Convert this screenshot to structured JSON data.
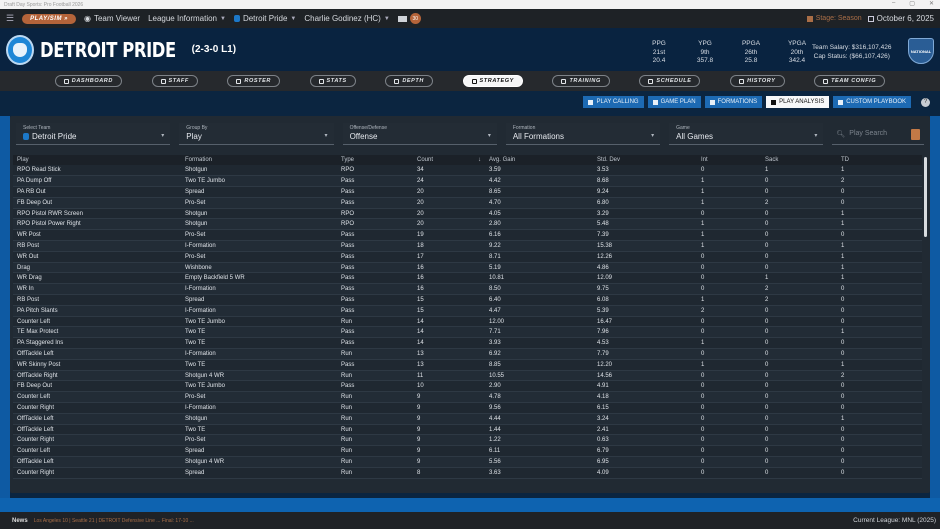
{
  "window": {
    "title": "Draft Day Sports: Pro Football 2026",
    "controls": [
      "–",
      "▢",
      "✕"
    ]
  },
  "topnav": {
    "play_sim": "PLAY/SIM »",
    "team_viewer": "Team Viewer",
    "league_info": "League Information",
    "team": "Detroit Pride",
    "coach": "Charlie Godinez (HC)",
    "mail_count": "30",
    "stage": "Stage: Season",
    "date": "October 6, 2025"
  },
  "header": {
    "team_name": "DETROIT PRIDE",
    "record": "(2-3-0 L1)",
    "stats": [
      {
        "label": "PPG",
        "rank": "21st",
        "value": "20.4"
      },
      {
        "label": "YPG",
        "rank": "9th",
        "value": "357.8"
      },
      {
        "label": "PPGA",
        "rank": "26th",
        "value": "25.8"
      },
      {
        "label": "YPGA",
        "rank": "20th",
        "value": "342.4"
      }
    ],
    "team_salary": "Team Salary: $316,107,426",
    "cap_status": "Cap Status: ($66,107,426)",
    "conference_badge": "NATIONAL"
  },
  "tabs": [
    {
      "label": "DASHBOARD"
    },
    {
      "label": "STAFF"
    },
    {
      "label": "ROSTER"
    },
    {
      "label": "STATS"
    },
    {
      "label": "DEPTH"
    },
    {
      "label": "STRATEGY"
    },
    {
      "label": "TRAINING"
    },
    {
      "label": "SCHEDULE"
    },
    {
      "label": "HISTORY"
    },
    {
      "label": "TEAM CONFIG"
    }
  ],
  "subnav": [
    {
      "label": "PLAY CALLING"
    },
    {
      "label": "GAME PLAN"
    },
    {
      "label": "FORMATIONS"
    },
    {
      "label": "PLAY ANALYSIS"
    },
    {
      "label": "CUSTOM PLAYBOOK"
    }
  ],
  "filters": {
    "team": {
      "label": "Select Team",
      "value": "Detroit Pride"
    },
    "group_by": {
      "label": "Group By",
      "value": "Play"
    },
    "side": {
      "label": "Offense/Defense",
      "value": "Offense"
    },
    "formation": {
      "label": "Formation",
      "value": "All Formations"
    },
    "game": {
      "label": "Game",
      "value": "All Games"
    },
    "search_placeholder": "Play Search"
  },
  "table": {
    "columns": [
      "Play",
      "Formation",
      "Type",
      "Count",
      "Avg. Gain",
      "Std. Dev",
      "Int",
      "Sack",
      "TD"
    ],
    "sort_indicator": "↓",
    "rows": [
      [
        "RPO Read Stick",
        "Shotgun",
        "RPO",
        "34",
        "3.59",
        "3.53",
        "0",
        "1",
        "1"
      ],
      [
        "PA Dump Off",
        "Two TE Jumbo",
        "Pass",
        "24",
        "4.42",
        "8.68",
        "1",
        "0",
        "2"
      ],
      [
        "PA RB Out",
        "Spread",
        "Pass",
        "20",
        "8.65",
        "9.24",
        "1",
        "0",
        "0"
      ],
      [
        "FB Deep Out",
        "Pro-Set",
        "Pass",
        "20",
        "4.70",
        "6.80",
        "1",
        "2",
        "0"
      ],
      [
        "RPO Pistol RWR Screen",
        "Shotgun",
        "RPO",
        "20",
        "4.05",
        "3.29",
        "0",
        "0",
        "1"
      ],
      [
        "RPO Pistol Power Right",
        "Shotgun",
        "RPO",
        "20",
        "2.80",
        "5.48",
        "1",
        "0",
        "1"
      ],
      [
        "WR Post",
        "Pro-Set",
        "Pass",
        "19",
        "6.16",
        "7.39",
        "1",
        "0",
        "0"
      ],
      [
        "RB Post",
        "I-Formation",
        "Pass",
        "18",
        "9.22",
        "15.38",
        "1",
        "0",
        "1"
      ],
      [
        "WR Out",
        "Pro-Set",
        "Pass",
        "17",
        "8.71",
        "12.26",
        "0",
        "0",
        "1"
      ],
      [
        "Drag",
        "Wishbone",
        "Pass",
        "16",
        "5.19",
        "4.86",
        "0",
        "0",
        "1"
      ],
      [
        "WR Drag",
        "Empty Backfield 5 WR",
        "Pass",
        "16",
        "10.81",
        "12.09",
        "0",
        "1",
        "1"
      ],
      [
        "WR In",
        "I-Formation",
        "Pass",
        "16",
        "8.50",
        "9.75",
        "0",
        "2",
        "0"
      ],
      [
        "RB Post",
        "Spread",
        "Pass",
        "15",
        "6.40",
        "6.08",
        "1",
        "2",
        "0"
      ],
      [
        "PA Pitch Slants",
        "I-Formation",
        "Pass",
        "15",
        "4.47",
        "5.39",
        "2",
        "0",
        "0"
      ],
      [
        "Counter Left",
        "Two TE Jumbo",
        "Run",
        "14",
        "12.00",
        "16.47",
        "0",
        "0",
        "0"
      ],
      [
        "TE Max Protect",
        "Two TE",
        "Pass",
        "14",
        "7.71",
        "7.96",
        "0",
        "0",
        "1"
      ],
      [
        "PA Staggered Ins",
        "Two TE",
        "Pass",
        "14",
        "3.93",
        "4.53",
        "1",
        "0",
        "0"
      ],
      [
        "OffTackle Left",
        "I-Formation",
        "Run",
        "13",
        "6.92",
        "7.79",
        "0",
        "0",
        "0"
      ],
      [
        "WR Skinny Post",
        "Two TE",
        "Pass",
        "13",
        "8.85",
        "12.20",
        "1",
        "0",
        "1"
      ],
      [
        "OffTackle Right",
        "Shotgun 4 WR",
        "Run",
        "11",
        "10.55",
        "14.56",
        "0",
        "0",
        "2"
      ],
      [
        "FB Deep Out",
        "Two TE Jumbo",
        "Pass",
        "10",
        "2.90",
        "4.91",
        "0",
        "0",
        "0"
      ],
      [
        "Counter Left",
        "Pro-Set",
        "Run",
        "9",
        "4.78",
        "4.18",
        "0",
        "0",
        "0"
      ],
      [
        "Counter Right",
        "I-Formation",
        "Run",
        "9",
        "9.56",
        "6.15",
        "0",
        "0",
        "0"
      ],
      [
        "OffTackle Left",
        "Shotgun",
        "Run",
        "9",
        "4.44",
        "3.24",
        "0",
        "0",
        "1"
      ],
      [
        "OffTackle Left",
        "Two TE",
        "Run",
        "9",
        "1.44",
        "2.41",
        "0",
        "0",
        "0"
      ],
      [
        "Counter Right",
        "Pro-Set",
        "Run",
        "9",
        "1.22",
        "0.63",
        "0",
        "0",
        "0"
      ],
      [
        "Counter Left",
        "Spread",
        "Run",
        "9",
        "6.11",
        "6.79",
        "0",
        "0",
        "0"
      ],
      [
        "OffTackle Left",
        "Shotgun 4 WR",
        "Run",
        "9",
        "5.56",
        "6.95",
        "0",
        "0",
        "0"
      ],
      [
        "Counter Right",
        "Spread",
        "Run",
        "8",
        "3.63",
        "4.09",
        "0",
        "0",
        "0"
      ]
    ]
  },
  "bottombar": {
    "news_label": "News",
    "ticker": "Los Angeles 10  |  Seattle 21  |  DETROIT Defensive Line ... Final: 17-10 ...",
    "current_league": "Current League: MNL (2025)"
  }
}
